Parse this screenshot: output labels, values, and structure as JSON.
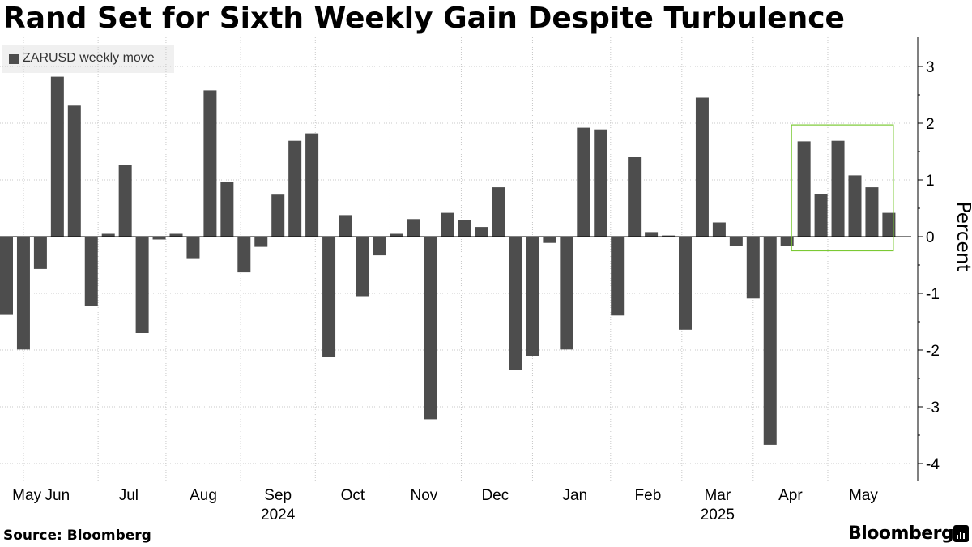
{
  "title": "Rand Set for Sixth Weekly Gain Despite Turbulence",
  "legend": {
    "label": "ZARUSD weekly move",
    "color": "#4d4d4d"
  },
  "footer": {
    "source": "Source: Bloomberg",
    "logo": "Bloomberg"
  },
  "chart_data": {
    "type": "bar",
    "title": "Rand Set for Sixth Weekly Gain Despite Turbulence",
    "series": [
      {
        "name": "ZARUSD weekly move",
        "values": [
          -1.38,
          -1.99,
          -0.57,
          2.82,
          2.31,
          -1.22,
          0.05,
          1.27,
          -1.7,
          -0.05,
          0.05,
          -0.38,
          2.58,
          0.96,
          -0.63,
          -0.18,
          0.74,
          1.69,
          1.82,
          -2.12,
          0.38,
          -1.05,
          -0.33,
          0.05,
          0.31,
          -3.22,
          0.42,
          0.3,
          0.17,
          0.87,
          -2.35,
          -2.1,
          -0.11,
          -1.99,
          1.92,
          1.89,
          -1.39,
          1.4,
          0.08,
          0.02,
          -1.64,
          2.45,
          0.25,
          -0.16,
          -1.09,
          -3.67,
          -0.16,
          1.68,
          0.75,
          1.69,
          1.08,
          0.87,
          0.42
        ]
      }
    ],
    "bar_color": "#4d4d4d",
    "ylabel": "Percent",
    "ylim": [
      -4.3,
      3.3
    ],
    "yticks": [
      3,
      2,
      1,
      0,
      -1,
      -2,
      -3,
      -4
    ],
    "x_tick_labels": [
      "May",
      "Jun",
      "Jul",
      "Aug",
      "Sep",
      "Oct",
      "Nov",
      "Dec",
      "Jan",
      "Feb",
      "Mar",
      "Apr",
      "May"
    ],
    "x_tick_bar_index": [
      1.2,
      3.0,
      7.2,
      11.6,
      16.0,
      20.4,
      24.6,
      28.8,
      33.5,
      37.8,
      41.9,
      46.2,
      50.5
    ],
    "x_sep_bar_index": [
      1.0,
      5.4,
      9.4,
      13.8,
      18.2,
      22.6,
      26.8,
      31.0,
      35.6,
      39.8,
      44.0,
      48.4
    ],
    "year_labels": [
      {
        "label": "2024",
        "bar_index": 16.0
      },
      {
        "label": "2025",
        "bar_index": 41.9
      }
    ],
    "highlight": {
      "from_bar_index": 46.5,
      "to_bar_index": 52.5,
      "y_from": -0.25,
      "y_to": 1.97,
      "color": "#7bc934"
    },
    "grid": true,
    "axis_position": "right"
  }
}
